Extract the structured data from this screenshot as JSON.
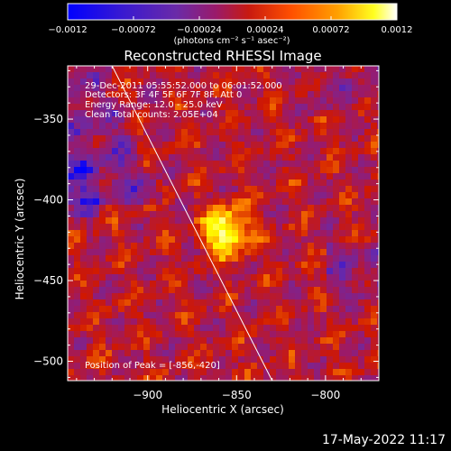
{
  "chart_data": {
    "type": "heatmap",
    "title": "Reconstructed RHESSI Image",
    "xlabel": "Heliocentric X (arcsec)",
    "ylabel": "Heliocentric Y (arcsec)",
    "xlim": [
      -945,
      -770
    ],
    "ylim": [
      -512,
      -317
    ],
    "x_ticks": [
      -900,
      -850,
      -800
    ],
    "x_tick_labels": [
      "−900",
      "−850",
      "−800"
    ],
    "y_ticks": [
      -500,
      -450,
      -400,
      -350
    ],
    "y_tick_labels": [
      "−500",
      "−450",
      "−400",
      "−350"
    ],
    "colorbar": {
      "min": -0.0012,
      "max": 0.0012,
      "ticks": [
        -0.0012,
        -0.00072,
        -0.00024,
        0.00024,
        0.00072,
        0.0012
      ],
      "tick_labels": [
        "−0.0012",
        "−0.00072",
        "−0.00024",
        "0.00024",
        "0.00072",
        "0.0012"
      ],
      "label": "(photons cm⁻² s⁻¹ asec⁻²)",
      "colormap": [
        "#0000ff",
        "#6a2aa8",
        "#9a1a6a",
        "#d01800",
        "#ff8800",
        "#ffff00",
        "#ffffff"
      ]
    },
    "annotations": [
      "29-Dec-2011 05:55:52.000 to 06:01:52.000",
      "Detectors: 3F 4F 5F 6F 7F 8F, Att 0",
      "Energy Range: 12.0 - 25.0 keV",
      "Clean    Total counts: 2.05E+04"
    ],
    "peak_label": "Position of Peak = [-856,-420]",
    "peak": {
      "x": -856,
      "y": -420
    },
    "limb_line": {
      "x": [
        -920,
        -830
      ],
      "y": [
        -317,
        -512
      ]
    }
  },
  "footer": {
    "date": "17-May-2022 11:17"
  }
}
